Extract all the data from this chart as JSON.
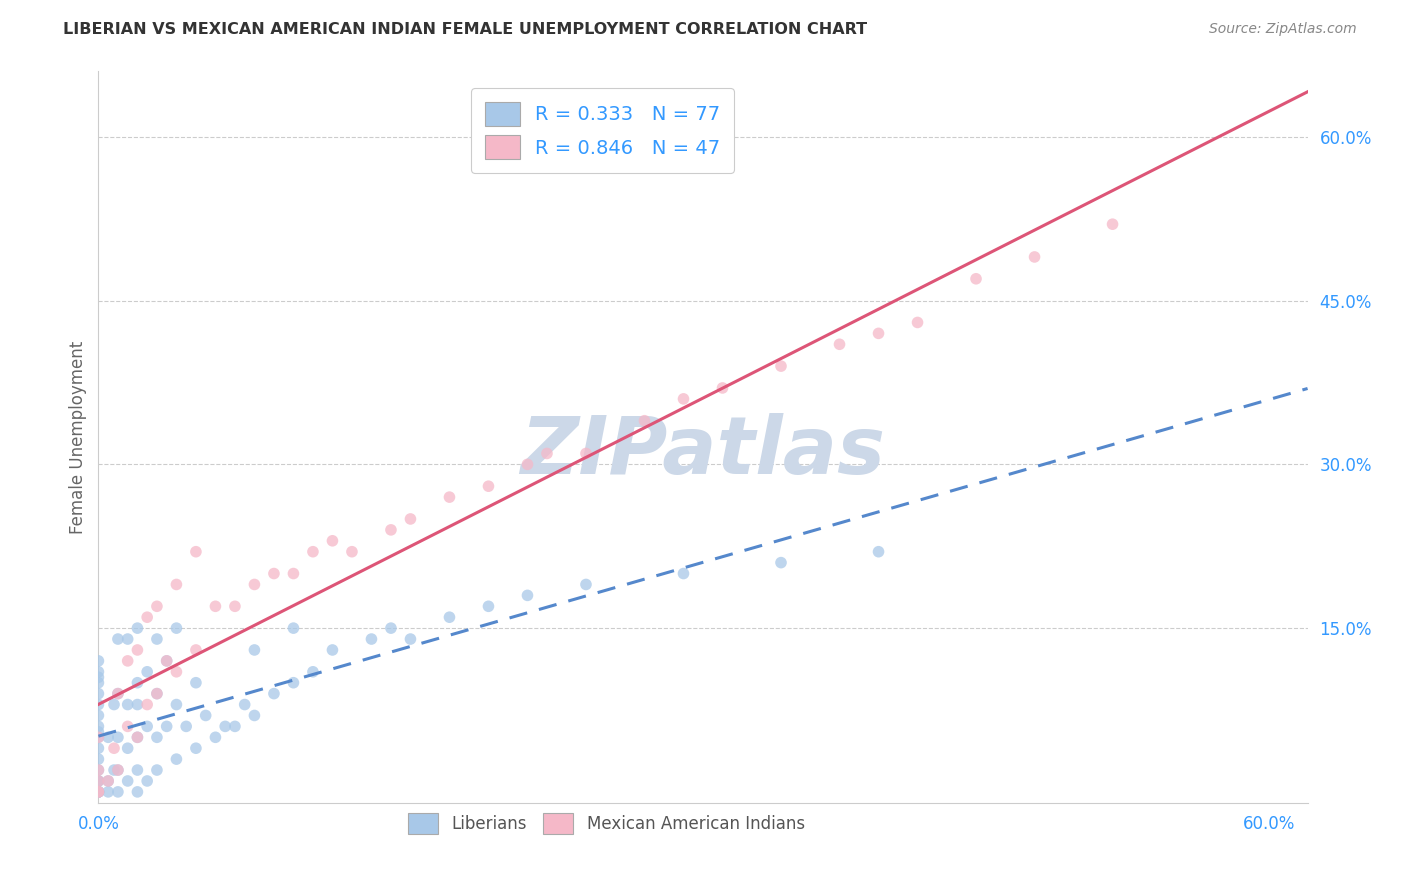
{
  "title": "LIBERIAN VS MEXICAN AMERICAN INDIAN FEMALE UNEMPLOYMENT CORRELATION CHART",
  "source": "Source: ZipAtlas.com",
  "ylabel": "Female Unemployment",
  "xlim": [
    0.0,
    0.62
  ],
  "ylim": [
    -0.01,
    0.66
  ],
  "legend_entries": [
    {
      "label": "Liberians",
      "R": "0.333",
      "N": "77",
      "color": "#a8c8e8"
    },
    {
      "label": "Mexican American Indians",
      "R": "0.846",
      "N": "47",
      "color": "#f5b8c8"
    }
  ],
  "watermark": "ZIPatlas",
  "watermark_color": "#ccd8e8",
  "background_color": "#ffffff",
  "grid_color": "#cccccc",
  "title_color": "#333333",
  "axis_label_color": "#666666",
  "tick_color": "#3399ff",
  "blue_scatter_color": "#a8c8e8",
  "pink_scatter_color": "#f5b8c8",
  "blue_line_color": "#5588cc",
  "pink_line_color": "#dd5577",
  "scatter_size": 70,
  "scatter_alpha": 0.75,
  "ytick_vals": [
    0.0,
    0.15,
    0.3,
    0.45,
    0.6
  ],
  "ytick_labels": [
    "",
    "15.0%",
    "30.0%",
    "45.0%",
    "60.0%"
  ],
  "xtick_vals": [
    0.0,
    0.6
  ],
  "xtick_labels": [
    "0.0%",
    "60.0%"
  ],
  "blue_x": [
    0.0,
    0.0,
    0.0,
    0.0,
    0.0,
    0.0,
    0.0,
    0.0,
    0.0,
    0.0,
    0.0,
    0.0,
    0.0,
    0.0,
    0.0,
    0.0,
    0.0,
    0.0,
    0.0,
    0.0,
    0.005,
    0.005,
    0.005,
    0.008,
    0.008,
    0.01,
    0.01,
    0.01,
    0.01,
    0.01,
    0.015,
    0.015,
    0.015,
    0.015,
    0.02,
    0.02,
    0.02,
    0.02,
    0.02,
    0.02,
    0.025,
    0.025,
    0.025,
    0.03,
    0.03,
    0.03,
    0.03,
    0.035,
    0.035,
    0.04,
    0.04,
    0.04,
    0.045,
    0.05,
    0.05,
    0.055,
    0.06,
    0.065,
    0.07,
    0.075,
    0.08,
    0.08,
    0.09,
    0.1,
    0.1,
    0.11,
    0.12,
    0.14,
    0.15,
    0.16,
    0.18,
    0.2,
    0.22,
    0.25,
    0.3,
    0.35,
    0.4
  ],
  "blue_y": [
    0.0,
    0.0,
    0.0,
    0.0,
    0.0,
    0.01,
    0.01,
    0.02,
    0.03,
    0.04,
    0.05,
    0.055,
    0.06,
    0.07,
    0.08,
    0.09,
    0.1,
    0.105,
    0.11,
    0.12,
    0.0,
    0.01,
    0.05,
    0.02,
    0.08,
    0.0,
    0.02,
    0.05,
    0.09,
    0.14,
    0.01,
    0.04,
    0.08,
    0.14,
    0.0,
    0.02,
    0.05,
    0.08,
    0.1,
    0.15,
    0.01,
    0.06,
    0.11,
    0.02,
    0.05,
    0.09,
    0.14,
    0.06,
    0.12,
    0.03,
    0.08,
    0.15,
    0.06,
    0.04,
    0.1,
    0.07,
    0.05,
    0.06,
    0.06,
    0.08,
    0.07,
    0.13,
    0.09,
    0.1,
    0.15,
    0.11,
    0.13,
    0.14,
    0.15,
    0.14,
    0.16,
    0.17,
    0.18,
    0.19,
    0.2,
    0.21,
    0.22
  ],
  "pink_x": [
    0.0,
    0.0,
    0.0,
    0.0,
    0.0,
    0.005,
    0.008,
    0.01,
    0.01,
    0.015,
    0.015,
    0.02,
    0.02,
    0.025,
    0.025,
    0.03,
    0.03,
    0.035,
    0.04,
    0.04,
    0.05,
    0.05,
    0.06,
    0.07,
    0.08,
    0.09,
    0.1,
    0.11,
    0.12,
    0.13,
    0.15,
    0.16,
    0.18,
    0.2,
    0.22,
    0.23,
    0.25,
    0.28,
    0.3,
    0.32,
    0.35,
    0.38,
    0.4,
    0.42,
    0.45,
    0.48,
    0.52
  ],
  "pink_y": [
    0.0,
    0.0,
    0.01,
    0.02,
    0.05,
    0.01,
    0.04,
    0.02,
    0.09,
    0.06,
    0.12,
    0.05,
    0.13,
    0.08,
    0.16,
    0.09,
    0.17,
    0.12,
    0.11,
    0.19,
    0.13,
    0.22,
    0.17,
    0.17,
    0.19,
    0.2,
    0.2,
    0.22,
    0.23,
    0.22,
    0.24,
    0.25,
    0.27,
    0.28,
    0.3,
    0.31,
    0.31,
    0.34,
    0.36,
    0.37,
    0.39,
    0.41,
    0.42,
    0.43,
    0.47,
    0.49,
    0.52
  ]
}
